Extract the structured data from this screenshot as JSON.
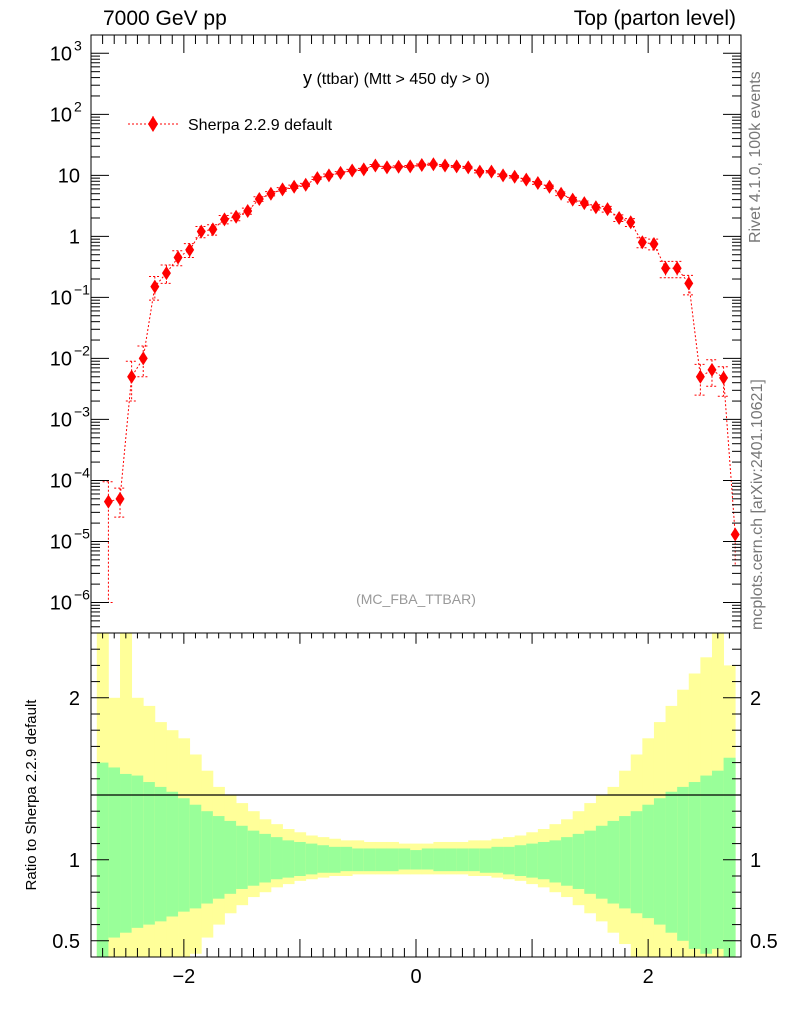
{
  "header": {
    "left": "7000 GeV pp",
    "right": "Top (parton level)"
  },
  "side": {
    "rivet": "Rivet 4.1.0,  100k events",
    "mcplots": "mcplots.cern.ch [arXiv:2401.10621]"
  },
  "chart_data": {
    "type": "scatter",
    "title_main": "y",
    "title_rest": " (ttbar) (Mtt > 450 dy > 0)",
    "watermark": "(MC_FBA_TTBAR)",
    "xlim": [
      -2.8,
      2.8
    ],
    "ylim_log10": [
      -6.5,
      3.3
    ],
    "y_ticks": [
      {
        "exp": 3,
        "label": "10",
        "sup": "3"
      },
      {
        "exp": 2,
        "label": "10",
        "sup": "2"
      },
      {
        "exp": 1,
        "label": "10",
        "sup": ""
      },
      {
        "exp": 0,
        "label": "1",
        "sup": ""
      },
      {
        "exp": -1,
        "label": "10",
        "sup": "−1"
      },
      {
        "exp": -2,
        "label": "10",
        "sup": "−2"
      },
      {
        "exp": -3,
        "label": "10",
        "sup": "−3"
      },
      {
        "exp": -4,
        "label": "10",
        "sup": "−4"
      },
      {
        "exp": -5,
        "label": "10",
        "sup": "−5"
      },
      {
        "exp": -6,
        "label": "10",
        "sup": "−6"
      }
    ],
    "series": [
      {
        "name": "Sherpa 2.2.9 default",
        "color": "#ff0000",
        "x": [
          -2.65,
          -2.55,
          -2.45,
          -2.35,
          -2.25,
          -2.15,
          -2.05,
          -1.95,
          -1.85,
          -1.75,
          -1.65,
          -1.55,
          -1.45,
          -1.35,
          -1.25,
          -1.15,
          -1.05,
          -0.95,
          -0.85,
          -0.75,
          -0.65,
          -0.55,
          -0.45,
          -0.35,
          -0.25,
          -0.15,
          -0.05,
          0.05,
          0.15,
          0.25,
          0.35,
          0.45,
          0.55,
          0.65,
          0.75,
          0.85,
          0.95,
          1.05,
          1.15,
          1.25,
          1.35,
          1.45,
          1.55,
          1.65,
          1.75,
          1.85,
          1.95,
          2.05,
          2.15,
          2.25,
          2.35,
          2.45,
          2.55,
          2.65
        ],
        "y": [
          4.5e-05,
          5e-05,
          0.005,
          0.01,
          0.15,
          0.25,
          0.45,
          0.6,
          1.2,
          1.3,
          1.9,
          2.1,
          2.6,
          4.1,
          5.0,
          5.9,
          6.5,
          7.0,
          9.0,
          10.0,
          11.0,
          12.0,
          12.5,
          14.5,
          13.5,
          13.8,
          14.0,
          14.8,
          15.2,
          14.5,
          14.0,
          13.5,
          11.5,
          11.5,
          10.0,
          9.5,
          8.5,
          7.5,
          6.5,
          5.0,
          4.0,
          3.5,
          3.0,
          2.8,
          2.0,
          1.7,
          0.8,
          0.75,
          0.3,
          0.3,
          0.17,
          0.005,
          0.0065,
          0.0048
        ],
        "y_err_low": [
          4.4e-05,
          2.5e-05,
          0.003,
          0.005,
          0.06,
          0.08,
          0.12,
          0.15,
          0.25,
          0.25,
          0.3,
          0.3,
          0.3,
          0.35,
          0.4,
          0.4,
          0.4,
          0.4,
          0.45,
          0.5,
          0.5,
          0.5,
          0.5,
          0.55,
          0.5,
          0.5,
          0.5,
          0.55,
          0.55,
          0.55,
          0.5,
          0.5,
          0.5,
          0.5,
          0.45,
          0.45,
          0.45,
          0.4,
          0.4,
          0.35,
          0.35,
          0.3,
          0.3,
          0.3,
          0.25,
          0.25,
          0.15,
          0.15,
          0.09,
          0.09,
          0.06,
          0.0025,
          0.003,
          0.0024
        ],
        "y_err_high": [
          5e-05,
          2.5e-05,
          0.004,
          0.006,
          0.07,
          0.09,
          0.13,
          0.16,
          0.25,
          0.25,
          0.3,
          0.3,
          0.3,
          0.35,
          0.4,
          0.4,
          0.4,
          0.4,
          0.45,
          0.5,
          0.5,
          0.5,
          0.5,
          0.55,
          0.5,
          0.5,
          0.5,
          0.55,
          0.55,
          0.55,
          0.5,
          0.5,
          0.5,
          0.5,
          0.45,
          0.45,
          0.45,
          0.4,
          0.4,
          0.35,
          0.35,
          0.3,
          0.3,
          0.3,
          0.25,
          0.25,
          0.15,
          0.15,
          0.09,
          0.09,
          0.06,
          0.003,
          0.003,
          0.0025
        ],
        "extra_point": {
          "x": 2.75,
          "y": 1.3e-05,
          "y_low": 4e-06
        }
      }
    ],
    "ratio": {
      "ylabel": "Ratio to Sherpa 2.2.9 default",
      "ylim": [
        0.4,
        2.4
      ],
      "y_ticks": [
        {
          "value": 0.5,
          "label": "0.5"
        },
        {
          "value": 1,
          "label": "1"
        },
        {
          "value": 2,
          "label": "2"
        }
      ],
      "x_ticks": [
        {
          "value": -2,
          "label": "−2"
        },
        {
          "value": 0,
          "label": "0"
        },
        {
          "value": 2,
          "label": "2"
        }
      ],
      "bins": [
        -2.75,
        -2.65,
        -2.55,
        -2.45,
        -2.35,
        -2.25,
        -2.15,
        -2.05,
        -1.95,
        -1.85,
        -1.75,
        -1.65,
        -1.55,
        -1.45,
        -1.35,
        -1.25,
        -1.15,
        -1.05,
        -0.95,
        -0.85,
        -0.75,
        -0.65,
        -0.55,
        -0.45,
        -0.35,
        -0.25,
        -0.15,
        -0.05,
        0.05,
        0.15,
        0.25,
        0.35,
        0.45,
        0.55,
        0.65,
        0.75,
        0.85,
        0.95,
        1.05,
        1.15,
        1.25,
        1.35,
        1.45,
        1.55,
        1.65,
        1.75,
        1.85,
        1.95,
        2.05,
        2.15,
        2.25,
        2.35,
        2.45,
        2.55,
        2.65,
        2.75
      ],
      "green_up": [
        1.6,
        1.57,
        1.53,
        1.52,
        1.48,
        1.45,
        1.42,
        1.38,
        1.34,
        1.3,
        1.27,
        1.24,
        1.21,
        1.18,
        1.16,
        1.14,
        1.12,
        1.11,
        1.1,
        1.09,
        1.08,
        1.08,
        1.07,
        1.07,
        1.07,
        1.07,
        1.07,
        1.06,
        1.07,
        1.07,
        1.07,
        1.07,
        1.07,
        1.07,
        1.08,
        1.08,
        1.09,
        1.1,
        1.11,
        1.12,
        1.14,
        1.16,
        1.18,
        1.21,
        1.24,
        1.27,
        1.3,
        1.34,
        1.38,
        1.42,
        1.45,
        1.48,
        1.52,
        1.55,
        1.63
      ],
      "yellow_up": [
        2.4,
        2.0,
        2.4,
        2.0,
        1.95,
        1.85,
        1.8,
        1.75,
        1.65,
        1.55,
        1.45,
        1.4,
        1.35,
        1.3,
        1.25,
        1.22,
        1.19,
        1.17,
        1.15,
        1.14,
        1.13,
        1.12,
        1.12,
        1.11,
        1.11,
        1.11,
        1.1,
        1.1,
        1.1,
        1.11,
        1.11,
        1.11,
        1.12,
        1.12,
        1.13,
        1.14,
        1.15,
        1.17,
        1.19,
        1.22,
        1.25,
        1.3,
        1.35,
        1.4,
        1.45,
        1.55,
        1.65,
        1.75,
        1.85,
        1.95,
        2.05,
        2.15,
        2.25,
        2.4,
        2.2
      ],
      "green_lo": [
        0.4,
        0.52,
        0.55,
        0.58,
        0.6,
        0.62,
        0.65,
        0.68,
        0.7,
        0.73,
        0.76,
        0.79,
        0.82,
        0.84,
        0.86,
        0.88,
        0.89,
        0.9,
        0.91,
        0.92,
        0.92,
        0.93,
        0.93,
        0.93,
        0.93,
        0.93,
        0.94,
        0.94,
        0.94,
        0.93,
        0.93,
        0.93,
        0.93,
        0.92,
        0.92,
        0.91,
        0.9,
        0.89,
        0.88,
        0.86,
        0.84,
        0.82,
        0.79,
        0.76,
        0.73,
        0.7,
        0.67,
        0.64,
        0.6,
        0.55,
        0.5,
        0.45,
        0.42,
        0.45,
        0.4
      ],
      "yellow_lo": [
        0.4,
        0.4,
        0.4,
        0.4,
        0.4,
        0.4,
        0.4,
        0.4,
        0.42,
        0.52,
        0.6,
        0.67,
        0.72,
        0.77,
        0.8,
        0.83,
        0.85,
        0.87,
        0.88,
        0.89,
        0.9,
        0.9,
        0.91,
        0.91,
        0.91,
        0.91,
        0.91,
        0.91,
        0.91,
        0.91,
        0.91,
        0.91,
        0.9,
        0.9,
        0.89,
        0.88,
        0.87,
        0.85,
        0.83,
        0.8,
        0.77,
        0.72,
        0.67,
        0.62,
        0.55,
        0.48,
        0.4,
        0.4,
        0.4,
        0.4,
        0.4,
        0.4,
        0.4,
        0.4,
        0.4
      ]
    }
  }
}
